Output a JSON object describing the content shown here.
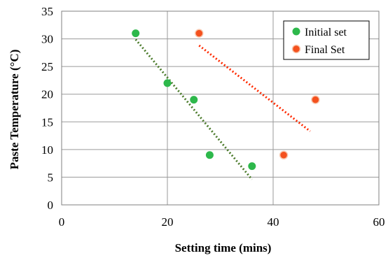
{
  "chart_data": {
    "type": "scatter",
    "title": "",
    "xlabel": "Setting time (mins)",
    "ylabel": "Paste Temperature (°C)",
    "xlim": [
      0,
      60
    ],
    "ylim": [
      0,
      35
    ],
    "xticks": [
      0,
      20,
      40,
      60
    ],
    "yticks": [
      0,
      5,
      10,
      15,
      20,
      25,
      30,
      35
    ],
    "grid": true,
    "legend_position": "top-right",
    "series": [
      {
        "name": "Initial set",
        "color": "#2db84b",
        "trendline_color": "#4a7a2a",
        "points": [
          [
            14,
            31
          ],
          [
            20,
            22
          ],
          [
            25,
            19
          ],
          [
            28,
            9
          ],
          [
            36,
            7
          ]
        ],
        "trendline": [
          [
            14,
            29.9
          ],
          [
            36,
            4.6
          ]
        ]
      },
      {
        "name": "Final Set",
        "color": "#f4511e",
        "trendline_color": "#ff2a00",
        "points": [
          [
            26,
            31
          ],
          [
            42,
            9
          ],
          [
            48,
            19
          ]
        ],
        "trendline": [
          [
            26,
            28.8
          ],
          [
            47,
            13.3
          ]
        ]
      }
    ]
  }
}
